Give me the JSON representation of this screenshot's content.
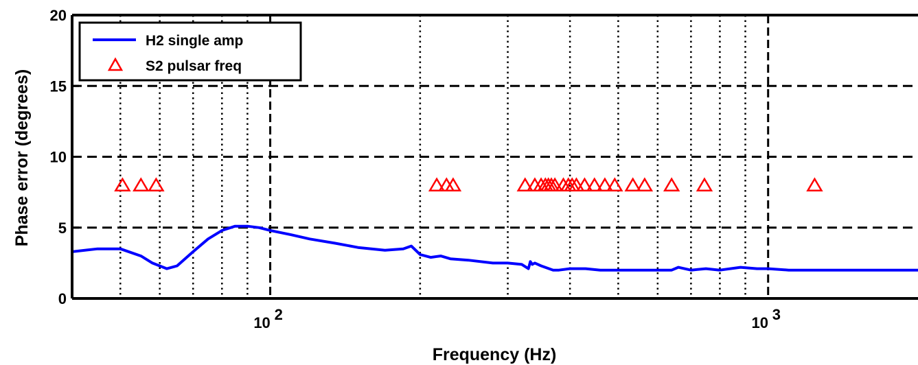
{
  "chart_data": {
    "type": "line",
    "title": "",
    "xlabel": "Frequency (Hz)",
    "ylabel": "Phase error (degrees)",
    "xscale": "log",
    "xlim": [
      40,
      2000
    ],
    "ylim": [
      0,
      20
    ],
    "x_ticks": [
      100,
      1000
    ],
    "x_tick_labels": [
      {
        "base": "10",
        "exp": "2"
      },
      {
        "base": "10",
        "exp": "3"
      }
    ],
    "y_ticks": [
      0,
      5,
      10,
      15,
      20
    ],
    "y_tick_labels": [
      "0",
      "5",
      "10",
      "15",
      "20"
    ],
    "grid": {
      "major": "dashed",
      "minor": "dotted"
    },
    "legend": {
      "position": "top-left"
    },
    "series": [
      {
        "name": "H2 single amp",
        "kind": "line",
        "color": "#0000ff",
        "x": [
          40,
          45,
          50,
          55,
          58,
          62,
          65,
          70,
          75,
          80,
          85,
          90,
          95,
          100,
          110,
          120,
          135,
          150,
          170,
          185,
          192,
          200,
          210,
          220,
          230,
          250,
          280,
          300,
          320,
          330,
          333,
          336,
          340,
          350,
          370,
          380,
          400,
          430,
          460,
          500,
          550,
          600,
          640,
          660,
          700,
          750,
          800,
          880,
          950,
          1000,
          1100,
          1200,
          1400,
          1600,
          1800,
          2000
        ],
        "y": [
          3.3,
          3.5,
          3.5,
          3.0,
          2.5,
          2.1,
          2.3,
          3.3,
          4.2,
          4.8,
          5.1,
          5.1,
          5.0,
          4.8,
          4.5,
          4.2,
          3.9,
          3.6,
          3.4,
          3.5,
          3.7,
          3.1,
          2.9,
          3.0,
          2.8,
          2.7,
          2.5,
          2.5,
          2.4,
          2.1,
          2.6,
          2.4,
          2.5,
          2.3,
          2.0,
          2.0,
          2.1,
          2.1,
          2.0,
          2.0,
          2.0,
          2.0,
          2.0,
          2.2,
          2.0,
          2.1,
          2.0,
          2.2,
          2.1,
          2.1,
          2.0,
          2.0,
          2.0,
          2.0,
          2.0,
          2.0
        ]
      },
      {
        "name": "S2 pulsar freq",
        "kind": "scatter",
        "marker": "triangle-open",
        "color": "#ff0000",
        "x": [
          50.5,
          55,
          59,
          216,
          226,
          233,
          325,
          340,
          350,
          357,
          362,
          367,
          373,
          388,
          397,
          404,
          412,
          428,
          448,
          470,
          492,
          535,
          565,
          640,
          745,
          1240
        ],
        "y": [
          8,
          8,
          8,
          8,
          8,
          8,
          8,
          8,
          8,
          8,
          8,
          8,
          8,
          8,
          8,
          8,
          8,
          8,
          8,
          8,
          8,
          8,
          8,
          8,
          8,
          8
        ]
      }
    ]
  }
}
